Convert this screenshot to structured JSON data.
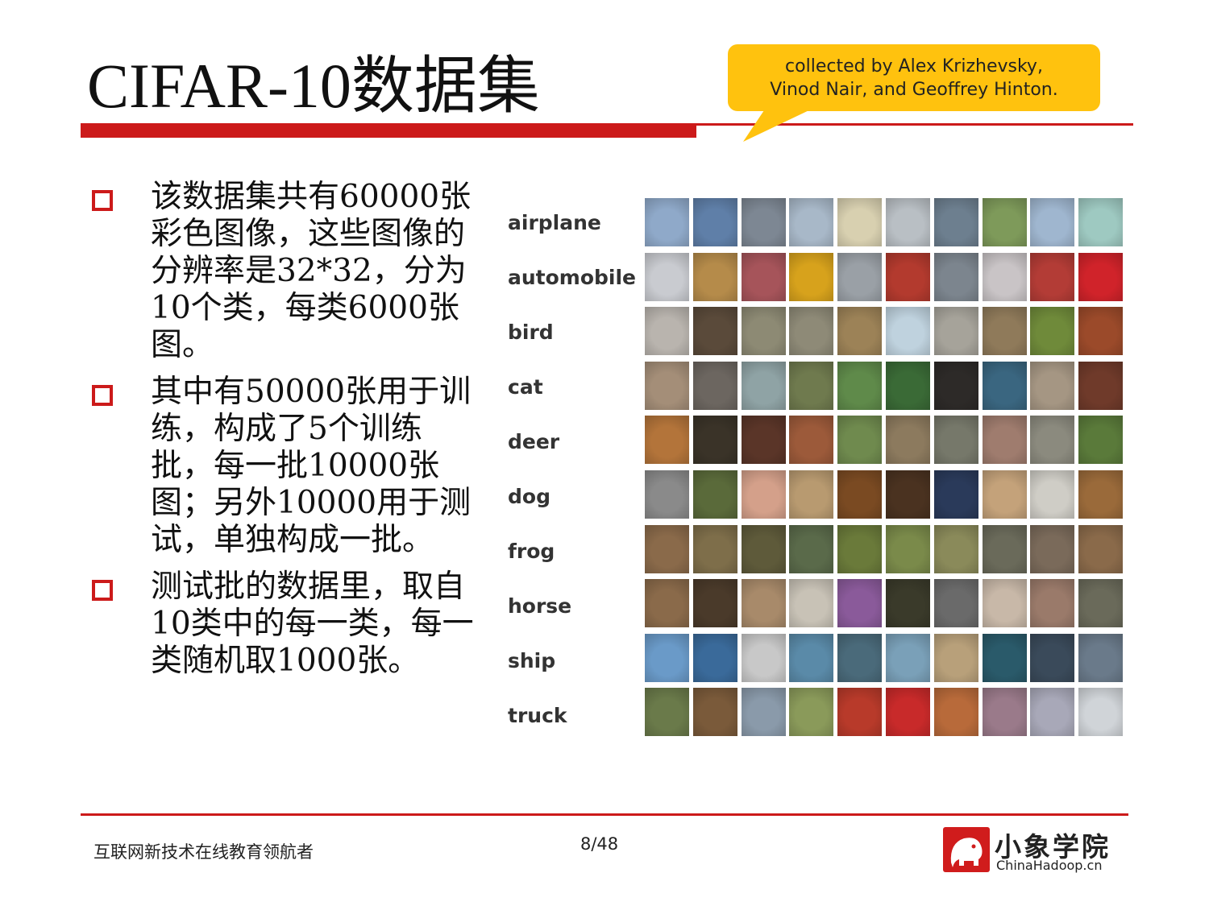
{
  "slide": {
    "title": "CIFAR-10数据集",
    "callout": {
      "line1": "collected by Alex Krizhevsky,",
      "line2": "Vinod Nair, and Geoffrey Hinton."
    },
    "bullets": [
      {
        "text": "该数据集共有60000张彩色图像，这些图像的分辨率是32*32，分为10个类，每类6000张图。"
      },
      {
        "text": "其中有50000张用于训练，构成了5个训练批，每一批10000张图；另外10000用于测试，单独构成一批。"
      },
      {
        "text": "测试批的数据里，取自10类中的每一类，每一类随机取1000张。"
      }
    ],
    "classes": [
      "airplane",
      "automobile",
      "bird",
      "cat",
      "deer",
      "dog",
      "frog",
      "horse",
      "ship",
      "truck"
    ],
    "tile_colors": [
      [
        "#8fa9c9",
        "#5f7fa8",
        "#7d8793",
        "#a8b8c8",
        "#d8d0b0",
        "#b9bfc4",
        "#6d7f8f",
        "#7e9a5a",
        "#9fb6cf",
        "#9ec9c1"
      ],
      [
        "#c9cbd0",
        "#b58b4a",
        "#a6545a",
        "#d7a21c",
        "#9aa0a6",
        "#b33a2e",
        "#7c858e",
        "#c9c4c6",
        "#b33c36",
        "#d0232a"
      ],
      [
        "#b9b4ae",
        "#5a4a3a",
        "#8d8a74",
        "#8e8a77",
        "#9c8257",
        "#bfd2de",
        "#a6a39a",
        "#8f7a5a",
        "#6f8a3a",
        "#9b4a2a"
      ],
      [
        "#a48e78",
        "#6c6660",
        "#8fa3a5",
        "#6f7a4e",
        "#5f8a4a",
        "#3a6a36",
        "#2d2a28",
        "#3a6680",
        "#a59683",
        "#6f3a2a"
      ],
      [
        "#b3743a",
        "#3a3328",
        "#5a3528",
        "#9c5a3a",
        "#6f8a4e",
        "#8c7a5e",
        "#76786a",
        "#9f7c6e",
        "#8b8a7e",
        "#5a7a3a"
      ],
      [
        "#8a8a8a",
        "#5a6a3a",
        "#d4a08a",
        "#b89a70",
        "#7a4a22",
        "#4a3220",
        "#2a3a5a",
        "#c4a27a",
        "#cfcdc6",
        "#9a6a3a"
      ],
      [
        "#8a6a4a",
        "#7e6e4a",
        "#5e5a3a",
        "#5a6a4a",
        "#6a7a3a",
        "#7a8a4a",
        "#8a8a5a",
        "#6a6a5a",
        "#7a6a5a",
        "#8a6a4a"
      ],
      [
        "#8a6a4a",
        "#4a3a2a",
        "#a88a6a",
        "#c8c2b6",
        "#8a5a9a",
        "#3a3a2a",
        "#6a6a6a",
        "#c8b8a8",
        "#9a7a6a",
        "#6a6a5a"
      ],
      [
        "#6a9ac8",
        "#3a6a9a",
        "#c8c8c8",
        "#5a8aa8",
        "#4a6a7a",
        "#7aa0b8",
        "#b8a07a",
        "#2a5a6a",
        "#3a4a5a",
        "#6a7a8a"
      ],
      [
        "#6a7a4a",
        "#7a5a3a",
        "#8a9aaa",
        "#8a9a5a",
        "#b83a2a",
        "#c82a2a",
        "#b86a3a",
        "#9a7a8a",
        "#a8a8b8",
        "#d0d4d8"
      ]
    ],
    "footer": {
      "tagline": "互联网新技术在线教育领航者",
      "page": "8/48",
      "logo_cn": "小象学院",
      "logo_en": "ChinaHadoop.cn"
    }
  }
}
